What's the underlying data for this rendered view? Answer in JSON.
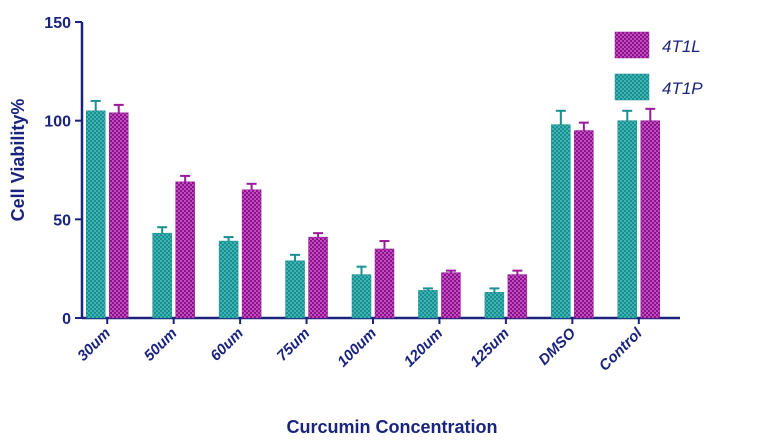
{
  "chart_data": {
    "type": "bar",
    "title": "",
    "xlabel": "Curcumin Concentration",
    "ylabel": "Cell Viability%",
    "ylim": [
      0,
      150
    ],
    "yticks": [
      0,
      50,
      100,
      150
    ],
    "grid": false,
    "legend_position": "top-right",
    "categories": [
      "30um",
      "50um",
      "60um",
      "75um",
      "100um",
      "120um",
      "125um",
      "DMSO",
      "Control"
    ],
    "series": [
      {
        "name": "4T1P",
        "color": "#1a8f8f",
        "values": [
          105,
          43,
          39,
          29,
          22,
          14,
          13,
          98,
          100
        ],
        "errors": [
          5,
          3,
          2,
          3,
          4,
          1,
          2,
          7,
          5
        ]
      },
      {
        "name": "4T1L",
        "color": "#9a1a9a",
        "values": [
          104,
          69,
          65,
          41,
          35,
          23,
          22,
          95,
          100
        ],
        "errors": [
          4,
          3,
          3,
          2,
          4,
          1,
          2,
          4,
          6
        ]
      }
    ],
    "legend_order": [
      "4T1L",
      "4T1P"
    ]
  }
}
